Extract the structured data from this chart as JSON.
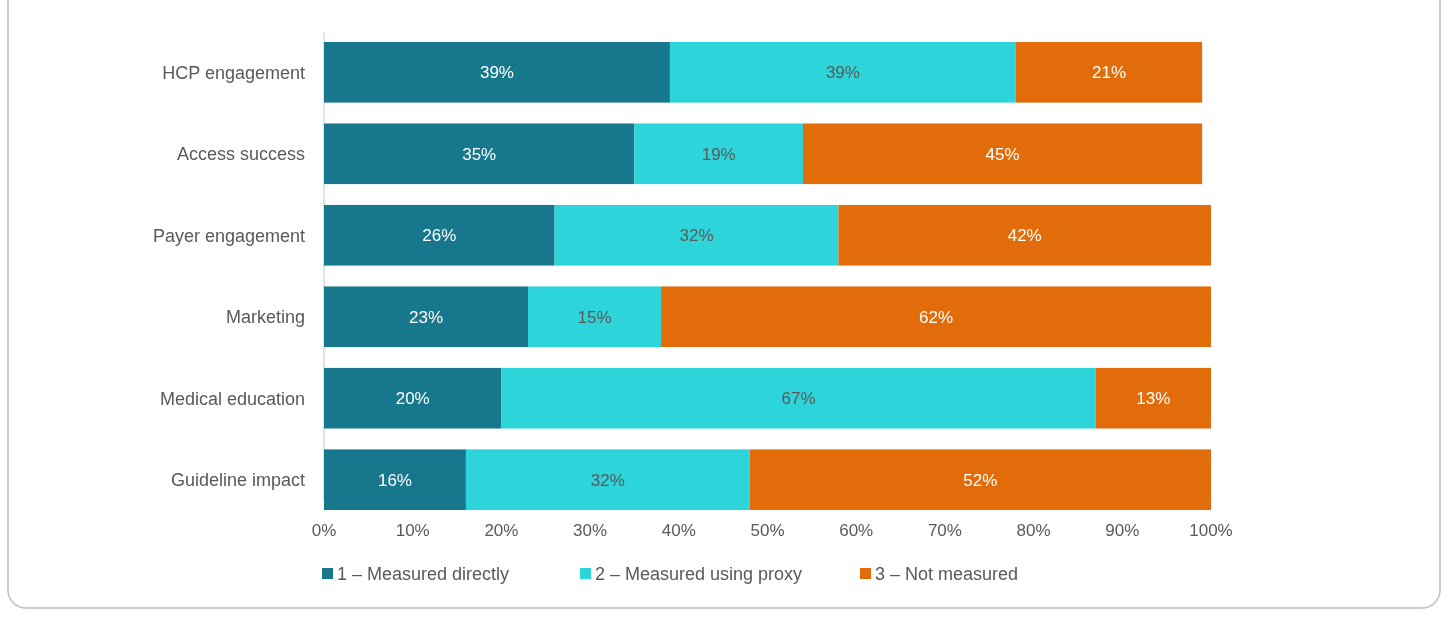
{
  "chart_data": {
    "type": "bar",
    "orientation": "horizontal",
    "stacked": true,
    "legend": "bottom",
    "grid": false,
    "categories": [
      "HCP engagement",
      "Access success",
      "Payer engagement",
      "Marketing",
      "Medical education",
      "Guideline impact"
    ],
    "series": [
      {
        "name": "1 – Measured directly",
        "color": "#17788d",
        "values": [
          39,
          35,
          26,
          23,
          20,
          16
        ],
        "value_labels": [
          "39%",
          "35%",
          "26%",
          "23%",
          "20%",
          "16%"
        ]
      },
      {
        "name": "2 – Measured using proxy",
        "color": "#2dd5db",
        "values": [
          39,
          19,
          32,
          15,
          67,
          32
        ],
        "value_labels": [
          "39%",
          "19%",
          "32%",
          "15%",
          "67%",
          "32%"
        ]
      },
      {
        "name": "3 – Not measured",
        "color": "#e36c0a",
        "values": [
          21,
          45,
          42,
          62,
          13,
          52
        ],
        "value_labels": [
          "21%",
          "45%",
          "42%",
          "62%",
          "13%",
          "52%"
        ]
      }
    ],
    "xlim": [
      0,
      100
    ],
    "xticks": [
      {
        "value": 0,
        "label": "0%"
      },
      {
        "value": 10,
        "label": "10%"
      },
      {
        "value": 20,
        "label": "20%"
      },
      {
        "value": 30,
        "label": "30%"
      },
      {
        "value": 40,
        "label": "40%"
      },
      {
        "value": 50,
        "label": "50%"
      },
      {
        "value": 60,
        "label": "60%"
      },
      {
        "value": 70,
        "label": "70%"
      },
      {
        "value": 80,
        "label": "80%"
      },
      {
        "value": 90,
        "label": "90%"
      },
      {
        "value": 100,
        "label": "100%"
      }
    ]
  }
}
